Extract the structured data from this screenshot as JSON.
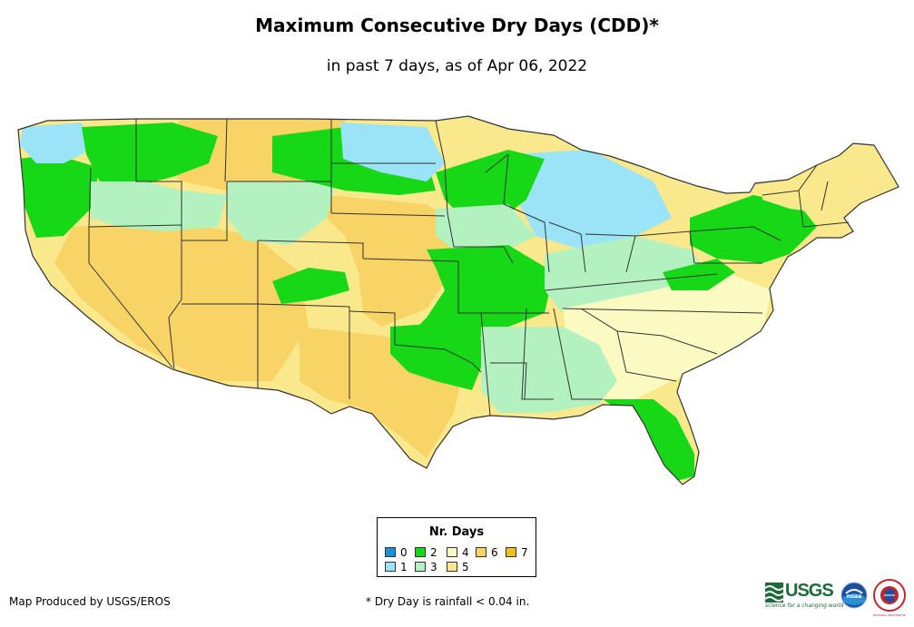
{
  "title": "Maximum Consecutive Dry Days (CDD)*",
  "subtitle": "in past 7 days, as of Apr 06, 2022",
  "legend": {
    "title": "Nr. Days",
    "items": [
      {
        "label": "0",
        "color": "#1a8fdb"
      },
      {
        "label": "1",
        "color": "#9be4f7"
      },
      {
        "label": "2",
        "color": "#17d817"
      },
      {
        "label": "3",
        "color": "#b3f2c0"
      },
      {
        "label": "4",
        "color": "#fafac2"
      },
      {
        "label": "5",
        "color": "#fae88c"
      },
      {
        "label": "6",
        "color": "#f8d366"
      },
      {
        "label": "7",
        "color": "#f0c11e"
      }
    ]
  },
  "credit": "Map Produced by USGS/EROS",
  "footnote": "* Dry Day is rainfall < 0.04 in.",
  "logos": {
    "usgs": "USGS",
    "usgs_tagline": "science for a changing world",
    "noaa": "noaa",
    "nws": "NATIONAL WEATHER SERVICE"
  }
}
